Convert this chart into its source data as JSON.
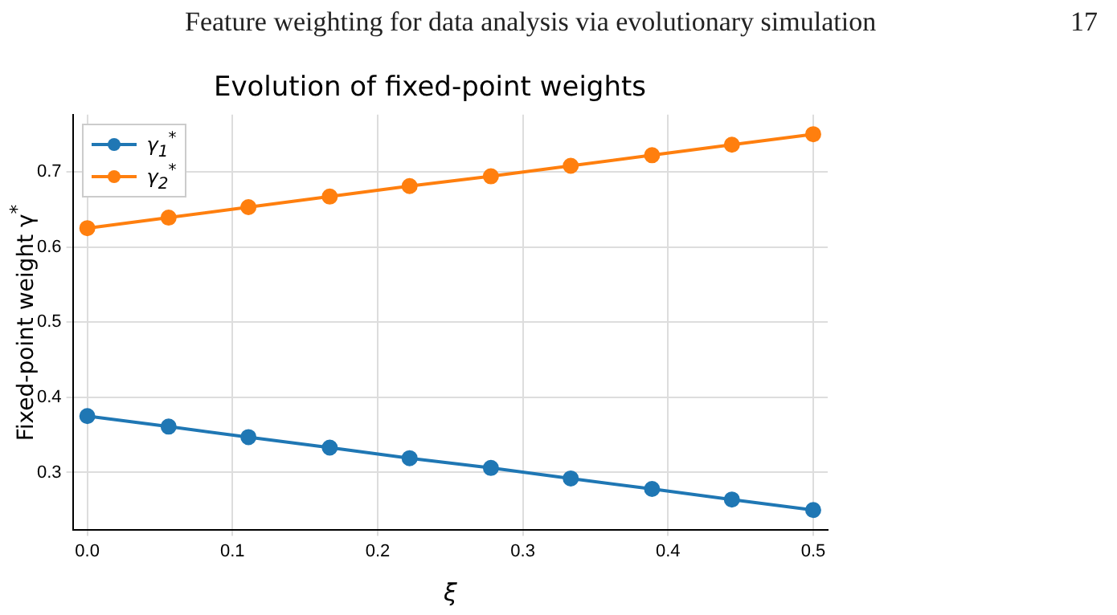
{
  "chart_data": {
    "type": "line",
    "title": "Evolution of fixed-point weights",
    "xlabel": "ξ",
    "ylabel": "Fixed-point weight γ$^{*}$",
    "annotations": [
      "Feature weighting for data analysis via evolutionary simulation",
      "17"
    ],
    "x": [
      0,
      0.056,
      0.111,
      0.167,
      0.222,
      0.278,
      0.333,
      0.389,
      0.444,
      0.5
    ],
    "series": [
      {
        "name": "γ$_{1}$$^{*}$",
        "color": "#1f77b4",
        "values": [
          0.375,
          0.361,
          0.347,
          0.333,
          0.319,
          0.306,
          0.292,
          0.278,
          0.264,
          0.25
        ]
      },
      {
        "name": "γ$_{2}$$^{*}$",
        "color": "#ff7f0e",
        "values": [
          0.625,
          0.639,
          0.653,
          0.667,
          0.681,
          0.694,
          0.708,
          0.722,
          0.736,
          0.75
        ]
      }
    ],
    "xlim": [
      -0.01,
      0.51
    ],
    "ylim": [
      0.224,
      0.776
    ],
    "xticks": [
      {
        "value": 0,
        "label": "0.0"
      },
      0.1,
      0.2,
      0.3,
      0.4,
      0.5
    ],
    "yticks": [
      0.3,
      0.4,
      0.5,
      0.6,
      0.7
    ],
    "grid": true,
    "legend": "top left",
    "marker": "circle",
    "line_style": "solid"
  }
}
